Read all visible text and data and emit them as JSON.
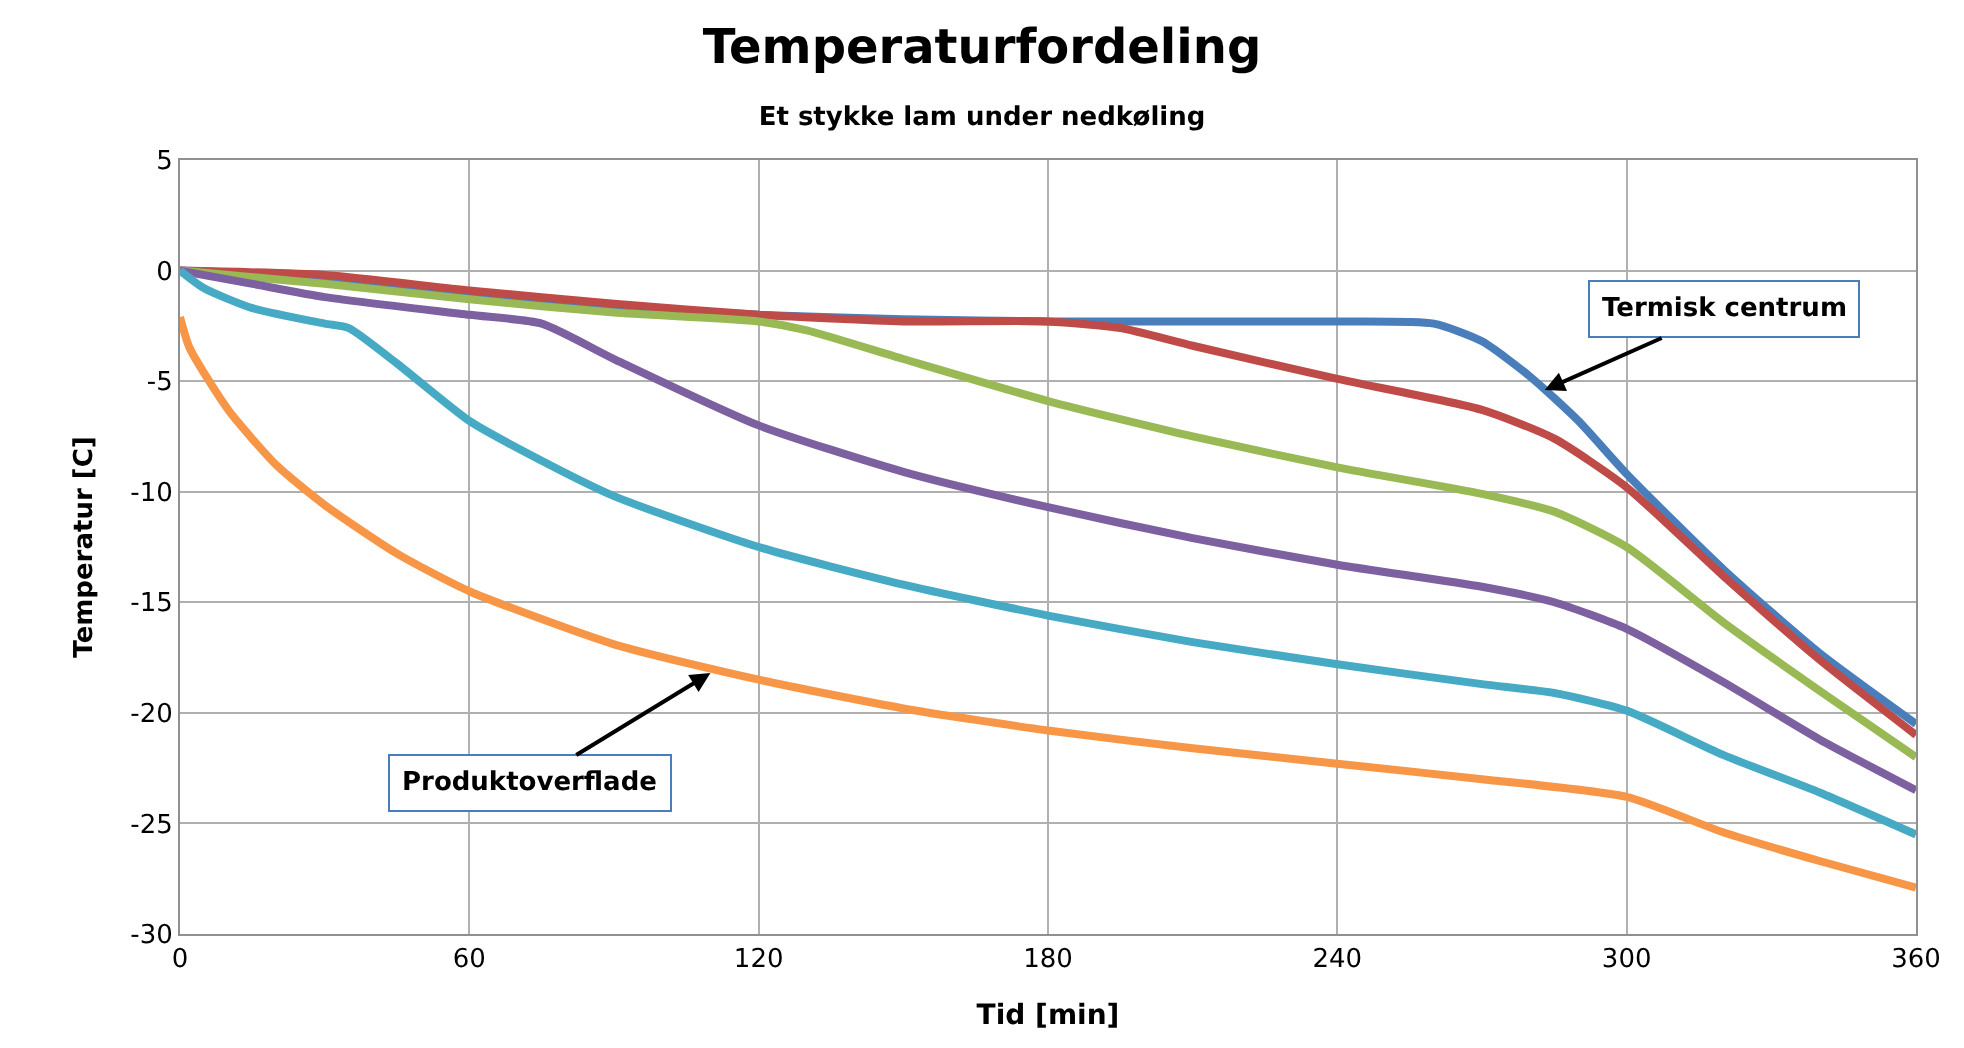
{
  "chart_data": {
    "type": "line",
    "title": "Temperaturfordeling",
    "subtitle": "Et stykke lam under nedkøling",
    "xlabel": "Tid [min]",
    "ylabel": "Temperatur [C]",
    "xlim": [
      0,
      360
    ],
    "xticks": [
      0,
      60,
      120,
      180,
      240,
      300,
      360
    ],
    "ylim": [
      -30,
      5
    ],
    "yticks": [
      5,
      0,
      -5,
      -10,
      -15,
      -20,
      -25,
      -30
    ],
    "grid": true,
    "marker": "none",
    "line_style": "solid",
    "series": [
      {
        "color": "#4a7ebb",
        "x": [
          0,
          30,
          60,
          90,
          120,
          150,
          180,
          240,
          260,
          270,
          280,
          290,
          300,
          320,
          340,
          360
        ],
        "values": [
          0,
          -0.3,
          -1.0,
          -1.6,
          -2.0,
          -2.2,
          -2.3,
          -2.3,
          -2.4,
          -3.2,
          -4.8,
          -6.8,
          -9.2,
          -13.5,
          -17.3,
          -20.5
        ]
      },
      {
        "color": "#be4b48",
        "x": [
          0,
          30,
          60,
          90,
          120,
          150,
          180,
          195,
          210,
          240,
          270,
          285,
          300,
          320,
          340,
          360
        ],
        "values": [
          0,
          -0.2,
          -0.9,
          -1.5,
          -2.0,
          -2.3,
          -2.3,
          -2.6,
          -3.4,
          -4.9,
          -6.3,
          -7.6,
          -9.8,
          -13.8,
          -17.6,
          -21.0
        ]
      },
      {
        "color": "#98b954",
        "x": [
          0,
          30,
          60,
          90,
          120,
          130,
          150,
          180,
          210,
          240,
          270,
          285,
          300,
          320,
          340,
          360
        ],
        "values": [
          0,
          -0.6,
          -1.3,
          -1.9,
          -2.3,
          -2.7,
          -4.0,
          -5.9,
          -7.5,
          -8.9,
          -10.1,
          -10.9,
          -12.5,
          -15.9,
          -19.0,
          -22.0
        ]
      },
      {
        "color": "#7d60a0",
        "x": [
          0,
          15,
          30,
          60,
          75,
          90,
          120,
          150,
          180,
          210,
          240,
          270,
          285,
          300,
          320,
          340,
          360
        ],
        "values": [
          0,
          -0.6,
          -1.2,
          -2.0,
          -2.4,
          -4.0,
          -7.0,
          -9.1,
          -10.7,
          -12.1,
          -13.3,
          -14.3,
          -15.0,
          -16.2,
          -18.6,
          -21.2,
          -23.5
        ]
      },
      {
        "color": "#46aac5",
        "x": [
          0,
          5,
          15,
          30,
          35,
          45,
          60,
          75,
          90,
          120,
          150,
          180,
          210,
          240,
          270,
          285,
          300,
          320,
          340,
          360
        ],
        "values": [
          0,
          -0.8,
          -1.7,
          -2.4,
          -2.6,
          -4.2,
          -6.8,
          -8.6,
          -10.2,
          -12.5,
          -14.2,
          -15.6,
          -16.8,
          -17.8,
          -18.7,
          -19.1,
          -19.9,
          -21.9,
          -23.6,
          -25.5
        ]
      },
      {
        "color": "#f79646",
        "x": [
          0,
          2,
          10,
          20,
          30,
          45,
          60,
          90,
          120,
          150,
          180,
          210,
          240,
          270,
          300,
          320,
          340,
          360
        ],
        "values": [
          -2.1,
          -3.5,
          -6.3,
          -8.8,
          -10.6,
          -12.8,
          -14.5,
          -16.9,
          -18.5,
          -19.8,
          -20.8,
          -21.6,
          -22.3,
          -23.0,
          -23.8,
          -25.4,
          -26.7,
          -27.9
        ]
      }
    ],
    "annotations": [
      {
        "text": "Termisk centrum",
        "x": 283,
        "y": -5.4
      },
      {
        "text": "Produktoverflade",
        "x": 110,
        "y": -18.2
      }
    ]
  }
}
